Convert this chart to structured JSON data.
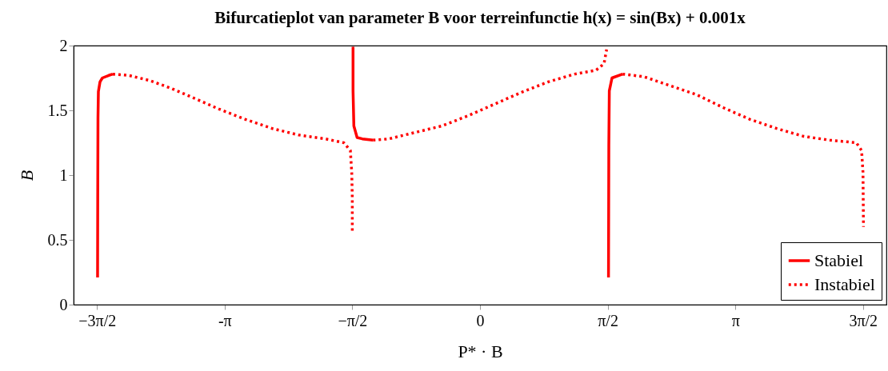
{
  "chart_data": {
    "type": "line",
    "title": "Bifurcatieplot van parameter B voor terreinfunctie h(x) = sin(Bx) + 0.001x",
    "xlabel": "P* · B",
    "ylabel": "B",
    "xlim": [
      -5,
      5
    ],
    "ylim": [
      0,
      2
    ],
    "xticks": [
      {
        "value": -4.712389,
        "label": "−3π/2"
      },
      {
        "value": -3.141593,
        "label": "-π"
      },
      {
        "value": -1.570796,
        "label": "−π/2"
      },
      0,
      {
        "value": 1.570796,
        "label": "π/2"
      },
      {
        "value": 3.141593,
        "label": "π"
      },
      {
        "value": 4.712389,
        "label": "3π/2"
      }
    ],
    "yticks": [
      0,
      0.5,
      1,
      1.5,
      2
    ],
    "grid": false,
    "legend": "bottom right",
    "marker": "none",
    "series": [
      {
        "name": "Stabiel",
        "color": "#ff0000",
        "line_style": "solid",
        "x": [
          -4.705,
          -4.703,
          -4.7,
          -4.695,
          -4.675,
          -4.646,
          -4.567,
          -4.518,
          null,
          -1.562,
          -1.562,
          -1.552,
          -1.512,
          -1.448,
          -1.316,
          null,
          1.581,
          1.585,
          1.591,
          1.624,
          1.755
        ],
        "values": [
          0.21,
          0.82,
          1.44,
          1.645,
          1.72,
          1.75,
          1.77,
          1.78,
          null,
          1.99,
          1.65,
          1.38,
          1.29,
          1.28,
          1.27,
          null,
          0.21,
          1.23,
          1.65,
          1.75,
          1.78
        ]
      },
      {
        "name": "Instabiel",
        "color": "#ff0000",
        "line_style": "dotted",
        "x": [
          -4.518,
          -4.323,
          -4.061,
          -3.8,
          -3.539,
          -3.212,
          -2.885,
          -2.558,
          -2.232,
          -1.905,
          -1.676,
          -1.595,
          -1.578,
          -1.571,
          -1.571,
          null,
          -1.316,
          -1.12,
          -0.794,
          -0.467,
          -0.14,
          0.186,
          0.513,
          0.84,
          1.166,
          1.428,
          1.526,
          1.558,
          null,
          1.755,
          2.016,
          2.343,
          2.669,
          2.996,
          3.323,
          3.649,
          3.977,
          4.303,
          4.63,
          4.695,
          4.712,
          4.718
        ],
        "values": [
          1.78,
          1.77,
          1.73,
          1.67,
          1.6,
          1.51,
          1.43,
          1.36,
          1.31,
          1.28,
          1.25,
          1.19,
          1.02,
          0.82,
          0.55,
          null,
          1.27,
          1.28,
          1.33,
          1.38,
          1.46,
          1.55,
          1.64,
          1.72,
          1.78,
          1.81,
          1.86,
          1.97,
          null,
          1.78,
          1.76,
          1.69,
          1.62,
          1.52,
          1.43,
          1.36,
          1.3,
          1.27,
          1.25,
          1.19,
          1.02,
          0.6
        ]
      }
    ]
  }
}
